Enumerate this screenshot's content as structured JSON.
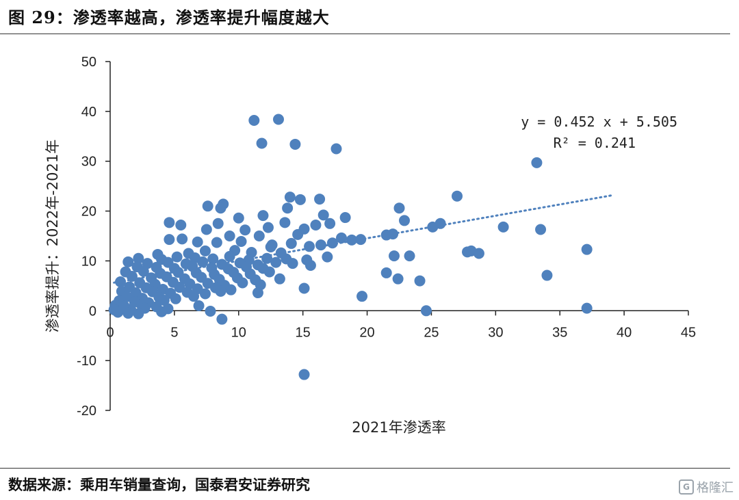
{
  "figure": {
    "title": "图 29：渗透率越高，渗透率提升幅度越大",
    "source": "数据来源：乘用车销量查询，国泰君安证券研究",
    "watermark": "格隆汇"
  },
  "chart_data": {
    "type": "scatter",
    "xlabel": "2021年渗透率",
    "ylabel": "渗透率提升：2022年-2021年",
    "xlim": [
      0,
      45
    ],
    "ylim": [
      -20,
      50
    ],
    "x_ticks": [
      0,
      5,
      10,
      15,
      20,
      25,
      30,
      35,
      40,
      45
    ],
    "y_ticks": [
      -20,
      -10,
      0,
      10,
      20,
      30,
      40,
      50
    ],
    "grid": false,
    "point_color": "#4f81bd",
    "trendline": {
      "slope": 0.452,
      "intercept": 5.505,
      "x_range": [
        0.3,
        39
      ],
      "style": "dotted",
      "color": "#4f81bd",
      "equation": "y = 0.452 x + 5.505",
      "r_squared": "R² = 0.241"
    },
    "points": [
      [
        11.2,
        38.2
      ],
      [
        13.1,
        38.4
      ],
      [
        11.8,
        33.6
      ],
      [
        14.4,
        33.4
      ],
      [
        17.6,
        32.5
      ],
      [
        33.2,
        29.7
      ],
      [
        27.0,
        23.0
      ],
      [
        14.0,
        22.8
      ],
      [
        14.8,
        22.3
      ],
      [
        16.3,
        22.4
      ],
      [
        7.6,
        21.0
      ],
      [
        8.8,
        21.4
      ],
      [
        8.6,
        20.6
      ],
      [
        13.8,
        20.6
      ],
      [
        22.5,
        20.6
      ],
      [
        16.6,
        19.2
      ],
      [
        11.9,
        19.1
      ],
      [
        18.3,
        18.7
      ],
      [
        22.9,
        18.1
      ],
      [
        10.0,
        18.6
      ],
      [
        4.6,
        17.7
      ],
      [
        5.5,
        17.2
      ],
      [
        8.4,
        17.5
      ],
      [
        13.6,
        17.7
      ],
      [
        25.7,
        17.5
      ],
      [
        25.1,
        16.8
      ],
      [
        30.6,
        16.8
      ],
      [
        33.5,
        16.3
      ],
      [
        10.5,
        16.2
      ],
      [
        7.5,
        16.3
      ],
      [
        12.3,
        16.7
      ],
      [
        15.1,
        16.4
      ],
      [
        16.0,
        17.2
      ],
      [
        17.1,
        17.5
      ],
      [
        21.5,
        15.2
      ],
      [
        22.0,
        15.4
      ],
      [
        9.3,
        15.0
      ],
      [
        11.6,
        15.0
      ],
      [
        14.6,
        15.3
      ],
      [
        18.0,
        14.6
      ],
      [
        18.8,
        14.2
      ],
      [
        19.5,
        14.3
      ],
      [
        4.6,
        14.3
      ],
      [
        5.6,
        14.4
      ],
      [
        6.8,
        13.8
      ],
      [
        8.3,
        13.7
      ],
      [
        10.2,
        13.9
      ],
      [
        12.6,
        13.2
      ],
      [
        14.1,
        13.5
      ],
      [
        16.4,
        13.2
      ],
      [
        17.3,
        13.6
      ],
      [
        15.5,
        12.9
      ],
      [
        37.1,
        12.3
      ],
      [
        12.5,
        12.8
      ],
      [
        27.8,
        11.8
      ],
      [
        28.1,
        12.0
      ],
      [
        28.7,
        11.5
      ],
      [
        22.1,
        11.0
      ],
      [
        23.3,
        11.0
      ],
      [
        13.3,
        11.6
      ],
      [
        3.7,
        11.3
      ],
      [
        6.1,
        11.5
      ],
      [
        7.4,
        12.0
      ],
      [
        9.7,
        12.1
      ],
      [
        11.0,
        11.7
      ],
      [
        2.2,
        10.5
      ],
      [
        4.0,
        10.3
      ],
      [
        5.2,
        10.8
      ],
      [
        6.6,
        10.6
      ],
      [
        8.0,
        10.4
      ],
      [
        9.3,
        10.9
      ],
      [
        10.8,
        10.2
      ],
      [
        12.2,
        10.5
      ],
      [
        13.7,
        10.4
      ],
      [
        15.3,
        10.2
      ],
      [
        16.9,
        10.8
      ],
      [
        1.4,
        9.8
      ],
      [
        2.9,
        9.5
      ],
      [
        4.5,
        9.7
      ],
      [
        5.9,
        9.4
      ],
      [
        7.2,
        9.8
      ],
      [
        8.7,
        9.3
      ],
      [
        10.1,
        9.6
      ],
      [
        11.5,
        9.2
      ],
      [
        12.9,
        9.7
      ],
      [
        14.2,
        9.5
      ],
      [
        15.6,
        9.1
      ],
      [
        2.1,
        8.8
      ],
      [
        3.6,
        8.7
      ],
      [
        5.0,
        8.5
      ],
      [
        6.4,
        8.9
      ],
      [
        7.9,
        8.6
      ],
      [
        9.2,
        8.4
      ],
      [
        10.6,
        8.8
      ],
      [
        11.9,
        8.5
      ],
      [
        1.2,
        7.8
      ],
      [
        2.6,
        7.9
      ],
      [
        3.9,
        7.5
      ],
      [
        5.3,
        7.7
      ],
      [
        6.7,
        7.6
      ],
      [
        8.1,
        7.3
      ],
      [
        9.6,
        7.7
      ],
      [
        10.9,
        7.4
      ],
      [
        12.4,
        7.8
      ],
      [
        21.5,
        7.6
      ],
      [
        34.0,
        7.1
      ],
      [
        1.7,
        6.9
      ],
      [
        3.2,
        6.6
      ],
      [
        4.4,
        6.8
      ],
      [
        5.8,
        6.4
      ],
      [
        7.1,
        6.7
      ],
      [
        8.5,
        6.3
      ],
      [
        9.9,
        6.6
      ],
      [
        11.3,
        6.2
      ],
      [
        13.2,
        6.4
      ],
      [
        22.4,
        6.4
      ],
      [
        24.1,
        6.0
      ],
      [
        0.8,
        5.8
      ],
      [
        2.3,
        5.6
      ],
      [
        3.5,
        5.3
      ],
      [
        4.9,
        5.7
      ],
      [
        6.2,
        5.4
      ],
      [
        7.6,
        5.5
      ],
      [
        8.9,
        5.1
      ],
      [
        10.3,
        5.6
      ],
      [
        11.7,
        5.2
      ],
      [
        1.5,
        4.8
      ],
      [
        2.8,
        4.6
      ],
      [
        4.1,
        4.3
      ],
      [
        5.4,
        4.7
      ],
      [
        6.8,
        4.4
      ],
      [
        8.2,
        4.6
      ],
      [
        9.4,
        4.2
      ],
      [
        15.1,
        4.5
      ],
      [
        0.9,
        3.9
      ],
      [
        2.0,
        3.6
      ],
      [
        3.3,
        3.8
      ],
      [
        4.7,
        3.5
      ],
      [
        6.0,
        3.7
      ],
      [
        7.4,
        3.4
      ],
      [
        8.6,
        3.9
      ],
      [
        11.5,
        3.6
      ],
      [
        1.3,
        2.8
      ],
      [
        2.5,
        2.5
      ],
      [
        3.8,
        2.7
      ],
      [
        5.1,
        2.4
      ],
      [
        6.5,
        2.9
      ],
      [
        0.7,
        2.0
      ],
      [
        1.9,
        1.8
      ],
      [
        3.0,
        1.6
      ],
      [
        4.2,
        2.1
      ],
      [
        19.6,
        2.9
      ],
      [
        0.4,
        1.1
      ],
      [
        1.1,
        0.9
      ],
      [
        2.4,
        1.3
      ],
      [
        6.9,
        1.0
      ],
      [
        3.6,
        0.8
      ],
      [
        0.3,
        0.2
      ],
      [
        1.6,
        0.3
      ],
      [
        2.7,
        0.5
      ],
      [
        4.5,
        0.4
      ],
      [
        0.6,
        -0.3
      ],
      [
        1.4,
        -0.5
      ],
      [
        2.2,
        -0.6
      ],
      [
        4.0,
        -0.2
      ],
      [
        24.6,
        0.0
      ],
      [
        37.1,
        0.5
      ],
      [
        7.8,
        -0.1
      ],
      [
        8.7,
        -1.7
      ],
      [
        15.1,
        -12.8
      ]
    ]
  }
}
